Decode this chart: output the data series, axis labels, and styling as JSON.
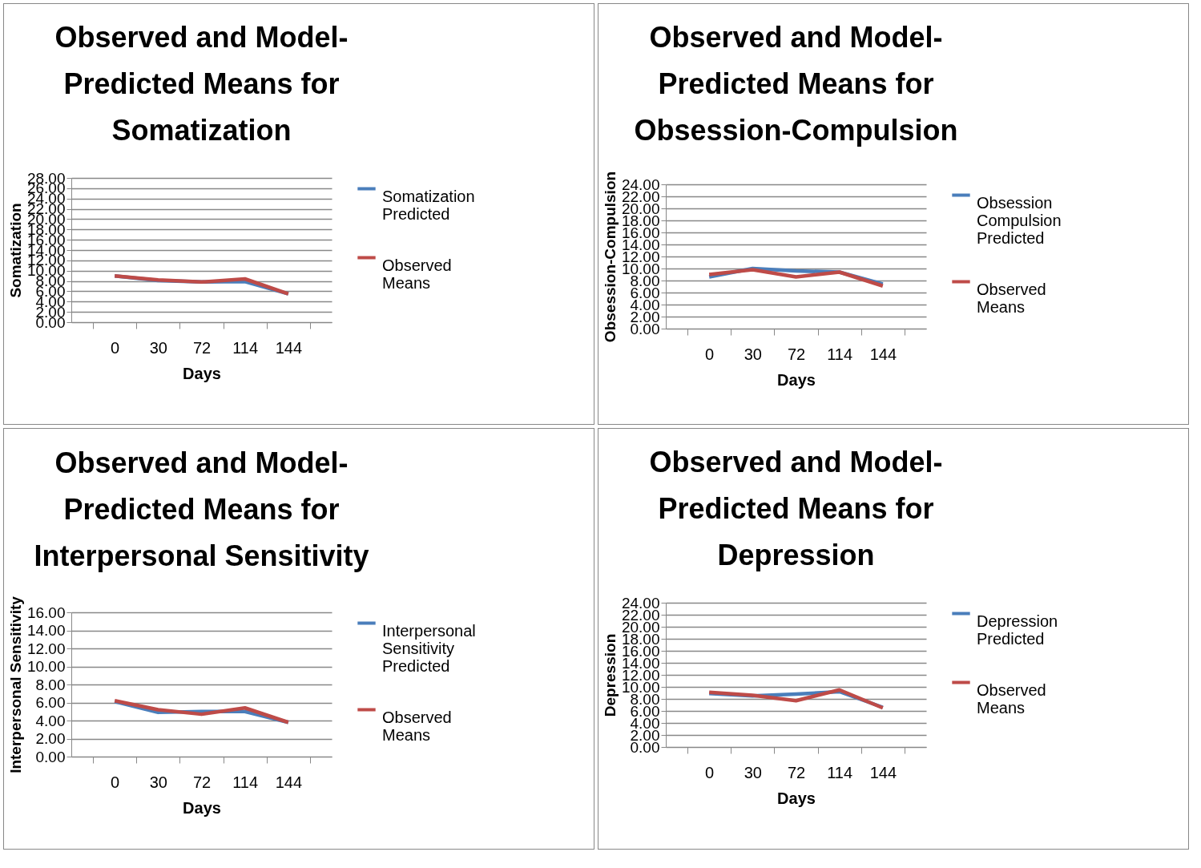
{
  "chart_data": [
    {
      "type": "line",
      "title": "Observed and Model-Predicted Means for Somatization",
      "xlabel": "Days",
      "ylabel": "Somatization",
      "categories": [
        "0",
        "30",
        "72",
        "114",
        "144"
      ],
      "ylim": [
        0,
        28
      ],
      "yticks": [
        {
          "value": 0,
          "label": "0.00"
        },
        {
          "value": 2,
          "label": "2.00"
        },
        {
          "value": 4,
          "label": "4.00"
        },
        {
          "value": 6,
          "label": "6.00"
        },
        {
          "value": 8,
          "label": "8.00"
        },
        {
          "value": 10,
          "label": "10.00"
        },
        {
          "value": 12,
          "label": "12.00"
        },
        {
          "value": 14,
          "label": "14.00"
        },
        {
          "value": 16,
          "label": "16.00"
        },
        {
          "value": 18,
          "label": "18.00"
        },
        {
          "value": 20,
          "label": "20.00"
        },
        {
          "value": 22,
          "label": "22.00"
        },
        {
          "value": 24,
          "label": "24.00"
        },
        {
          "value": 26,
          "label": "26.00"
        },
        {
          "value": 28,
          "label": "28.00"
        }
      ],
      "grid": "y",
      "legend": "right",
      "series": [
        {
          "name": "Somatization Predicted",
          "color": "#4a7ebb",
          "values": [
            9.0,
            8.1,
            7.8,
            7.9,
            5.5
          ]
        },
        {
          "name": "Observed Means",
          "color": "#be4b48",
          "values": [
            9.0,
            8.2,
            7.8,
            8.4,
            5.5
          ]
        }
      ]
    },
    {
      "type": "line",
      "title": "Observed and Model-Predicted Means for Obsession-Compulsion",
      "xlabel": "Days",
      "ylabel": "Obsession-Compulsion",
      "categories": [
        "0",
        "30",
        "72",
        "114",
        "144"
      ],
      "ylim": [
        0,
        24
      ],
      "yticks": [
        {
          "value": 0,
          "label": "0.00"
        },
        {
          "value": 2,
          "label": "2.00"
        },
        {
          "value": 4,
          "label": "4.00"
        },
        {
          "value": 6,
          "label": "6.00"
        },
        {
          "value": 8,
          "label": "8.00"
        },
        {
          "value": 10,
          "label": "10.00"
        },
        {
          "value": 12,
          "label": "12.00"
        },
        {
          "value": 14,
          "label": "14.00"
        },
        {
          "value": 16,
          "label": "16.00"
        },
        {
          "value": 18,
          "label": "18.00"
        },
        {
          "value": 20,
          "label": "20.00"
        },
        {
          "value": 22,
          "label": "22.00"
        },
        {
          "value": 24,
          "label": "24.00"
        }
      ],
      "grid": "y",
      "legend": "right",
      "series": [
        {
          "name": "Obsession Compulsion Predicted",
          "color": "#4a7ebb",
          "values": [
            8.6,
            10.0,
            9.6,
            9.4,
            7.4
          ]
        },
        {
          "name": "Observed Means",
          "color": "#be4b48",
          "values": [
            9.0,
            9.8,
            8.6,
            9.4,
            7.1
          ]
        }
      ]
    },
    {
      "type": "line",
      "title": "Observed and Model-Predicted Means for Interpersonal Sensitivity",
      "xlabel": "Days",
      "ylabel": "Interpersonal Sensitivity",
      "categories": [
        "0",
        "30",
        "72",
        "114",
        "144"
      ],
      "ylim": [
        0,
        16
      ],
      "yticks": [
        {
          "value": 0,
          "label": "0.00"
        },
        {
          "value": 2,
          "label": "2.00"
        },
        {
          "value": 4,
          "label": "4.00"
        },
        {
          "value": 6,
          "label": "6.00"
        },
        {
          "value": 8,
          "label": "8.00"
        },
        {
          "value": 10,
          "label": "10.00"
        },
        {
          "value": 12,
          "label": "12.00"
        },
        {
          "value": 14,
          "label": "14.00"
        },
        {
          "value": 16,
          "label": "16.00"
        }
      ],
      "grid": "y",
      "legend": "right",
      "series": [
        {
          "name": "Interpersonal Sensitivity Predicted",
          "color": "#4a7ebb",
          "values": [
            6.1,
            4.9,
            5.0,
            5.0,
            3.8
          ]
        },
        {
          "name": "Observed Means",
          "color": "#be4b48",
          "values": [
            6.2,
            5.2,
            4.7,
            5.4,
            3.8
          ]
        }
      ]
    },
    {
      "type": "line",
      "title": "Observed and Model-Predicted Means for Depression",
      "xlabel": "Days",
      "ylabel": "Depression",
      "categories": [
        "0",
        "30",
        "72",
        "114",
        "144"
      ],
      "ylim": [
        0,
        24
      ],
      "yticks": [
        {
          "value": 0,
          "label": "0.00"
        },
        {
          "value": 2,
          "label": "2.00"
        },
        {
          "value": 4,
          "label": "4.00"
        },
        {
          "value": 6,
          "label": "6.00"
        },
        {
          "value": 8,
          "label": "8.00"
        },
        {
          "value": 10,
          "label": "10.00"
        },
        {
          "value": 12,
          "label": "12.00"
        },
        {
          "value": 14,
          "label": "14.00"
        },
        {
          "value": 16,
          "label": "16.00"
        },
        {
          "value": 18,
          "label": "18.00"
        },
        {
          "value": 20,
          "label": "20.00"
        },
        {
          "value": 22,
          "label": "22.00"
        },
        {
          "value": 24,
          "label": "24.00"
        }
      ],
      "grid": "y",
      "legend": "right",
      "series": [
        {
          "name": "Depression Predicted",
          "color": "#4a7ebb",
          "values": [
            8.9,
            8.5,
            8.8,
            9.2,
            6.6
          ]
        },
        {
          "name": "Observed Means",
          "color": "#be4b48",
          "values": [
            9.1,
            8.6,
            7.7,
            9.5,
            6.5
          ]
        }
      ]
    }
  ]
}
